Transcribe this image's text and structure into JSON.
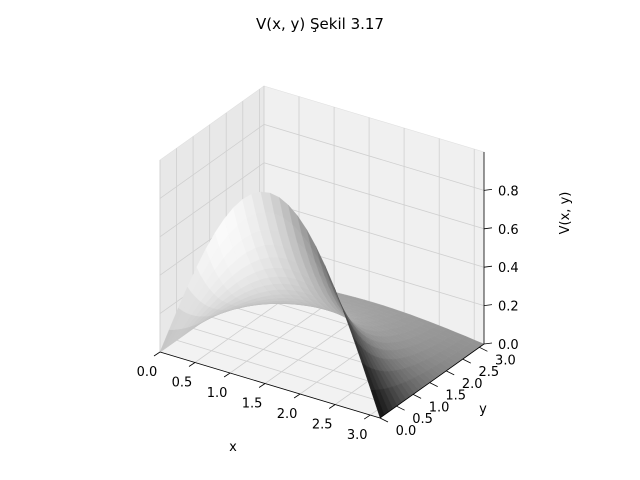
{
  "chart_data": {
    "type": "surface",
    "title": "V(x, y) Şekil 3.17",
    "xlabel": "x",
    "ylabel": "y",
    "zlabel": "V(x, y)",
    "xlim": [
      0,
      3.14
    ],
    "ylim": [
      0,
      3.14
    ],
    "zlim": [
      0,
      1.0
    ],
    "x_ticks": [
      "0.0",
      "0.5",
      "1.0",
      "1.5",
      "2.0",
      "2.5",
      "3.0"
    ],
    "y_ticks": [
      "0.0",
      "0.5",
      "1.0",
      "1.5",
      "2.0",
      "2.5",
      "3.0"
    ],
    "z_ticks": [
      "0.0",
      "0.2",
      "0.4",
      "0.6",
      "0.8"
    ],
    "surface_function": "V(x,y) = exp(-y) * sin(x)",
    "colormap": "gray",
    "grid": true
  }
}
